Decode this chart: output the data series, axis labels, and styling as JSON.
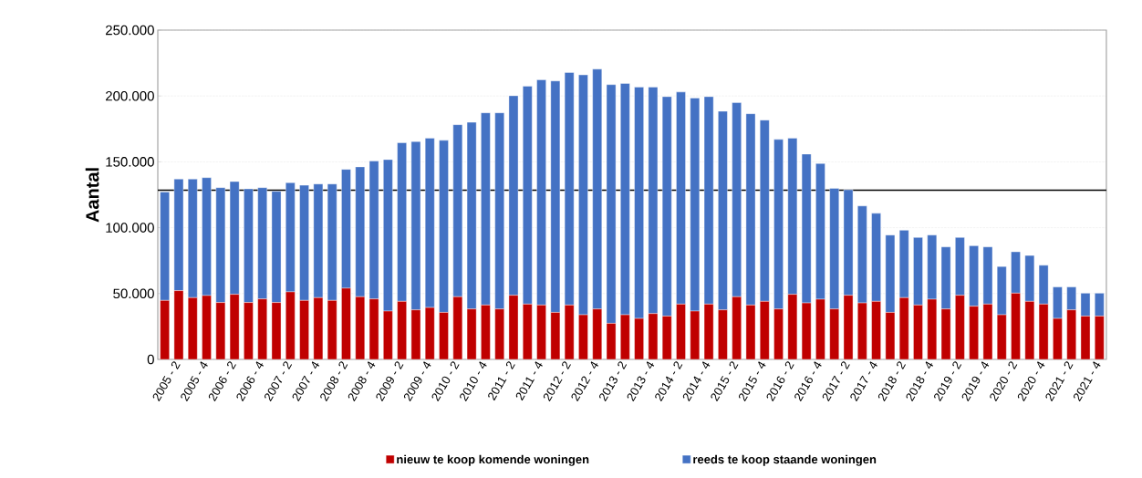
{
  "chart_data": {
    "type": "bar",
    "stacked": true,
    "ylabel": "Aantal",
    "categories": [
      null,
      "2005 - 2",
      null,
      "2005 - 4",
      null,
      "2006 - 2",
      null,
      "2006 - 4",
      null,
      "2007 - 2",
      null,
      "2007 - 4",
      null,
      "2008 - 2",
      null,
      "2008 - 4",
      null,
      "2009 - 2",
      null,
      "2009 - 4",
      null,
      "2010 - 2",
      null,
      "2010 - 4",
      null,
      "2011 - 2",
      null,
      "2011 - 4",
      null,
      "2012 - 2",
      null,
      "2012 - 4",
      null,
      "2013 - 2",
      null,
      "2013 - 4",
      null,
      "2014 - 2",
      null,
      "2014 - 4",
      null,
      "2015 - 2",
      null,
      "2015 - 4",
      null,
      "2016 - 2",
      null,
      "2016 - 4",
      null,
      "2017 - 2",
      null,
      "2017 - 4",
      null,
      "2018 - 2",
      null,
      "2018 - 4",
      null,
      "2019 - 2",
      null,
      "2019 - 4",
      null,
      "2020 - 2",
      null,
      "2020 - 4",
      null,
      "2021 - 2",
      null,
      "2021 - 4"
    ],
    "series": [
      {
        "name": "nieuw te koop komende woningen",
        "color": "#c00000",
        "values": [
          44800,
          52200,
          46900,
          48500,
          43200,
          49400,
          43200,
          45900,
          43200,
          51300,
          44800,
          46900,
          44800,
          54100,
          47600,
          45900,
          36700,
          44100,
          37600,
          39400,
          35700,
          47600,
          38300,
          41300,
          38300,
          48700,
          42000,
          41300,
          35700,
          41300,
          33900,
          38300,
          27400,
          33900,
          31100,
          34800,
          32900,
          42000,
          36700,
          42000,
          37600,
          47600,
          41300,
          44100,
          38300,
          49400,
          42900,
          45700,
          38300,
          48700,
          42900,
          44100,
          35700,
          46900,
          41300,
          45700,
          38300,
          48700,
          40400,
          42000,
          33900,
          50300,
          44100,
          42000,
          31100,
          37600,
          32900,
          32900
        ]
      },
      {
        "name": "reeds te koop staande woningen",
        "color": "#4472c4",
        "values": [
          82300,
          84700,
          90000,
          89500,
          87200,
          85600,
          86300,
          84500,
          84400,
          82800,
          87400,
          86300,
          88400,
          90200,
          98600,
          104700,
          115000,
          120400,
          127800,
          128600,
          130600,
          130600,
          141700,
          145900,
          148900,
          151500,
          165400,
          171000,
          175700,
          176500,
          182100,
          182100,
          181200,
          175600,
          175600,
          171900,
          166600,
          161000,
          161700,
          157500,
          150800,
          147300,
          145200,
          137600,
          128700,
          118600,
          113000,
          103000,
          91600,
          80100,
          73600,
          66800,
          58700,
          51200,
          51300,
          48700,
          47100,
          43900,
          45900,
          43400,
          36600,
          31400,
          34800,
          29500,
          23900,
          17400,
          17400,
          17400
        ]
      }
    ],
    "ylim": [
      0,
      250000
    ],
    "yticks": [
      0,
      {
        "value": 50000,
        "label": "50.000"
      },
      {
        "value": 100000,
        "label": "100.000"
      },
      {
        "value": 150000,
        "label": "150.000"
      },
      {
        "value": 200000,
        "label": "200.000"
      },
      {
        "value": 250000,
        "label": "250.000"
      }
    ],
    "ref_lines": [
      {
        "axis": "y",
        "value": 128500,
        "color": "#000000"
      }
    ],
    "grid": "y",
    "legend": "bottom"
  }
}
